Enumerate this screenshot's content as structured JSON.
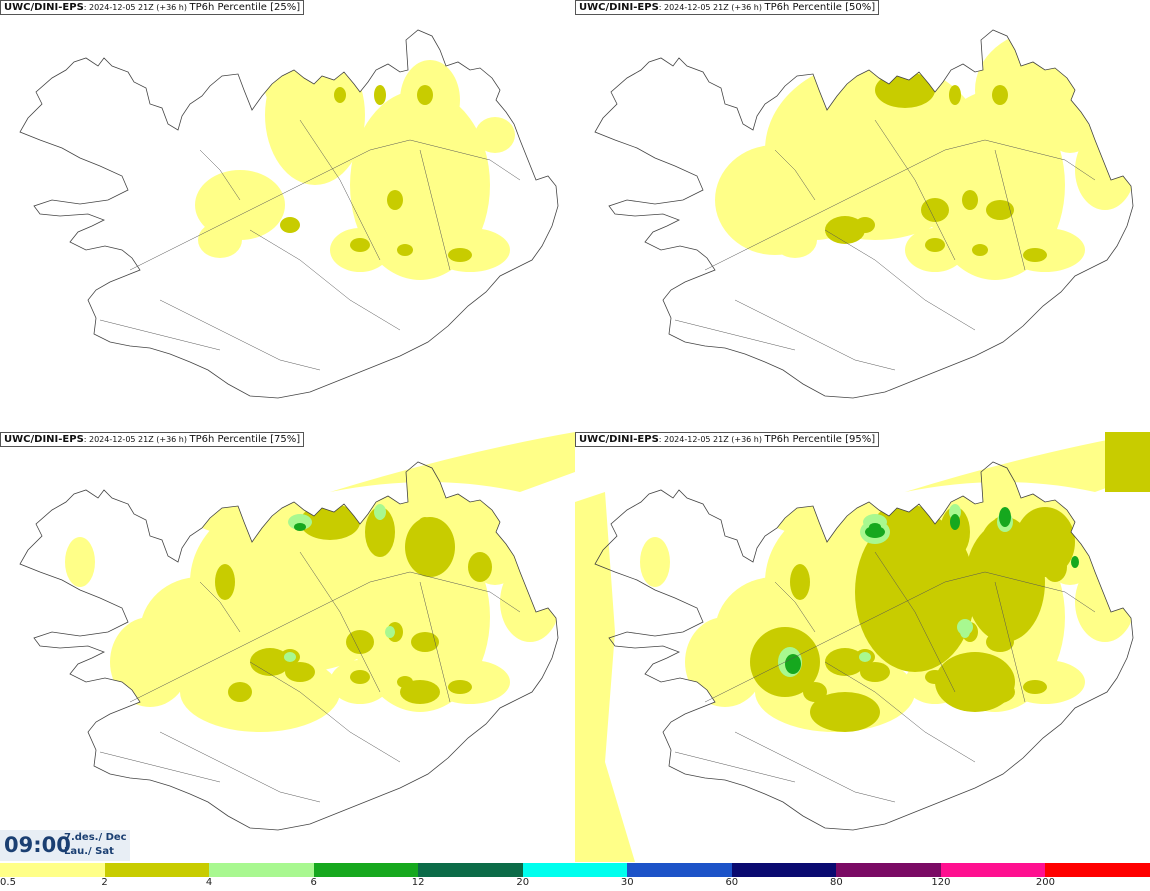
{
  "panels": [
    {
      "model": "UWC/DINI-EPS",
      "run": "2024-12-05 21Z (+36 h)",
      "field": "TP6h Percentile [25%]",
      "level": 1
    },
    {
      "model": "UWC/DINI-EPS",
      "run": "2024-12-05 21Z (+36 h)",
      "field": "TP6h Percentile [50%]",
      "level": 2
    },
    {
      "model": "UWC/DINI-EPS",
      "run": "2024-12-05 21Z (+36 h)",
      "field": "TP6h Percentile [75%]",
      "level": 3
    },
    {
      "model": "UWC/DINI-EPS",
      "run": "2024-12-05 21Z (+36 h)",
      "field": "TP6h Percentile [95%]",
      "level": 4
    }
  ],
  "valid_time": {
    "time": "09:00",
    "date_line1": "7.des./ Dec",
    "date_line2": "Lau./ Sat"
  },
  "legend": {
    "colors": [
      "#ffff88",
      "#c8cc00",
      "#a8f890",
      "#16a81e",
      "#0b6b48",
      "#00ffee",
      "#1c53c8",
      "#0a0a70",
      "#7a0a64",
      "#ff1090",
      "#ff0000"
    ],
    "labels": [
      "0.5",
      "2",
      "4",
      "6",
      "12",
      "20",
      "30",
      "60",
      "80",
      "120",
      "200"
    ]
  }
}
